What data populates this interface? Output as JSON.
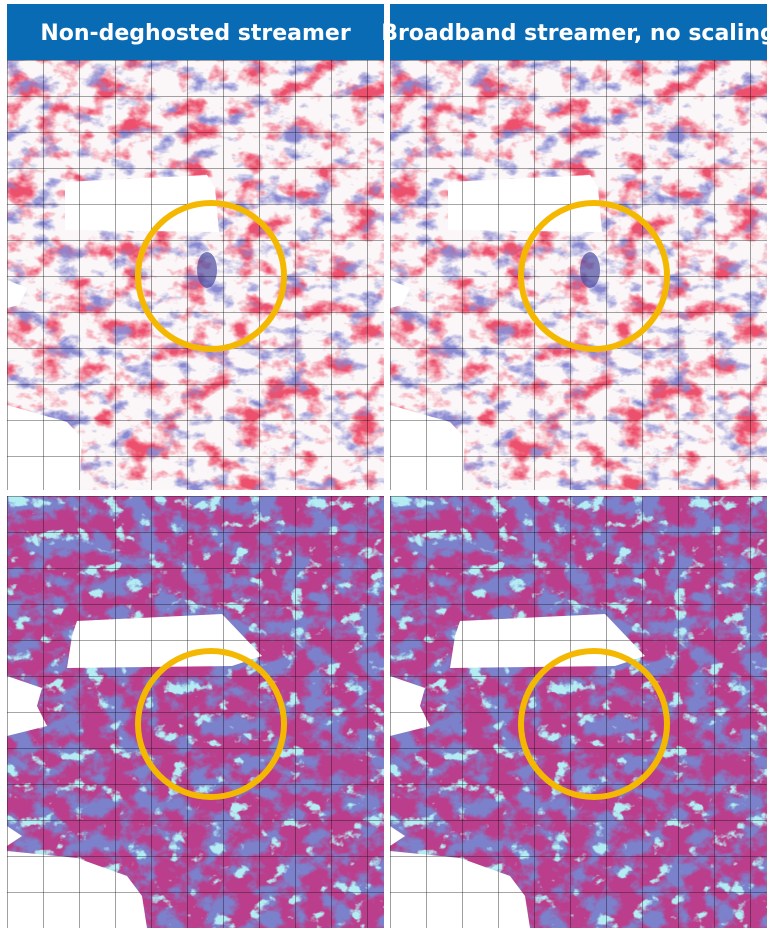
{
  "header": {
    "left": "Non-deghosted streamer",
    "right": "Broadband streamer, no scaling"
  }
}
